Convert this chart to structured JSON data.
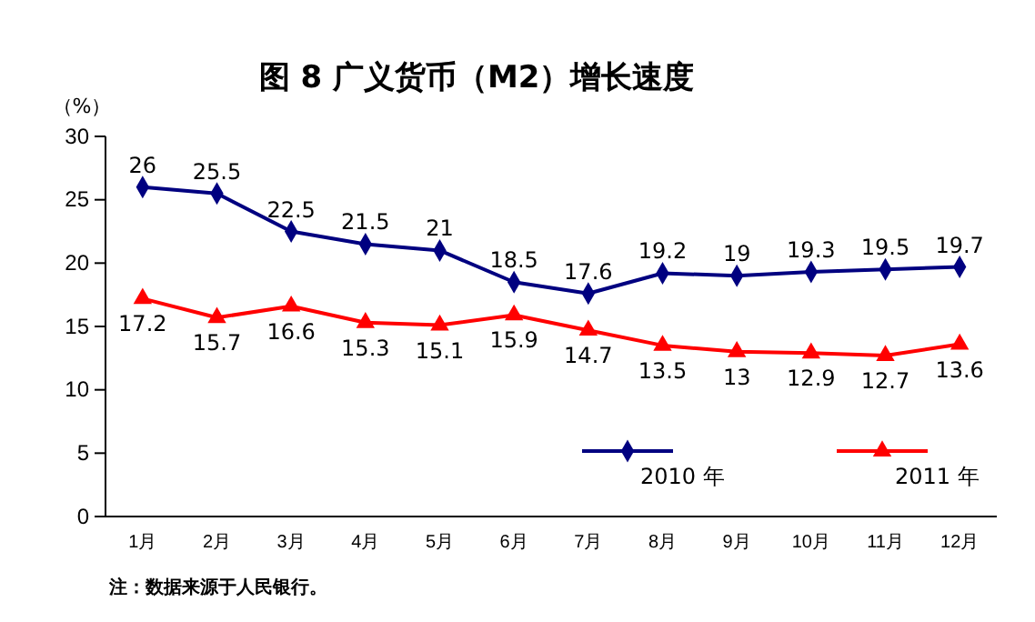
{
  "chart_data": {
    "type": "line",
    "title": "图 8 广义货币（M2）增长速度",
    "ylabel": "（%）",
    "categories": [
      "1月",
      "2月",
      "3月",
      "4月",
      "5月",
      "6月",
      "7月",
      "8月",
      "9月",
      "10月",
      "11月",
      "12月"
    ],
    "series": [
      {
        "name": "2010 年",
        "color": "#000080",
        "marker": "diamond",
        "values": [
          26,
          25.5,
          22.5,
          21.5,
          21,
          18.5,
          17.6,
          19.2,
          19,
          19.3,
          19.5,
          19.7
        ]
      },
      {
        "name": "2011 年",
        "color": "#ff0000",
        "marker": "triangle",
        "values": [
          17.2,
          15.7,
          16.6,
          15.3,
          15.1,
          15.9,
          14.7,
          13.5,
          13,
          12.9,
          12.7,
          13.6
        ]
      }
    ],
    "ylim": [
      0,
      30
    ],
    "yticks": [
      0,
      5,
      10,
      15,
      20,
      25,
      30
    ],
    "grid": false,
    "legend": "bottom right",
    "data_labels": true,
    "annotations": [
      "注：数据来源于人民银行。"
    ]
  }
}
